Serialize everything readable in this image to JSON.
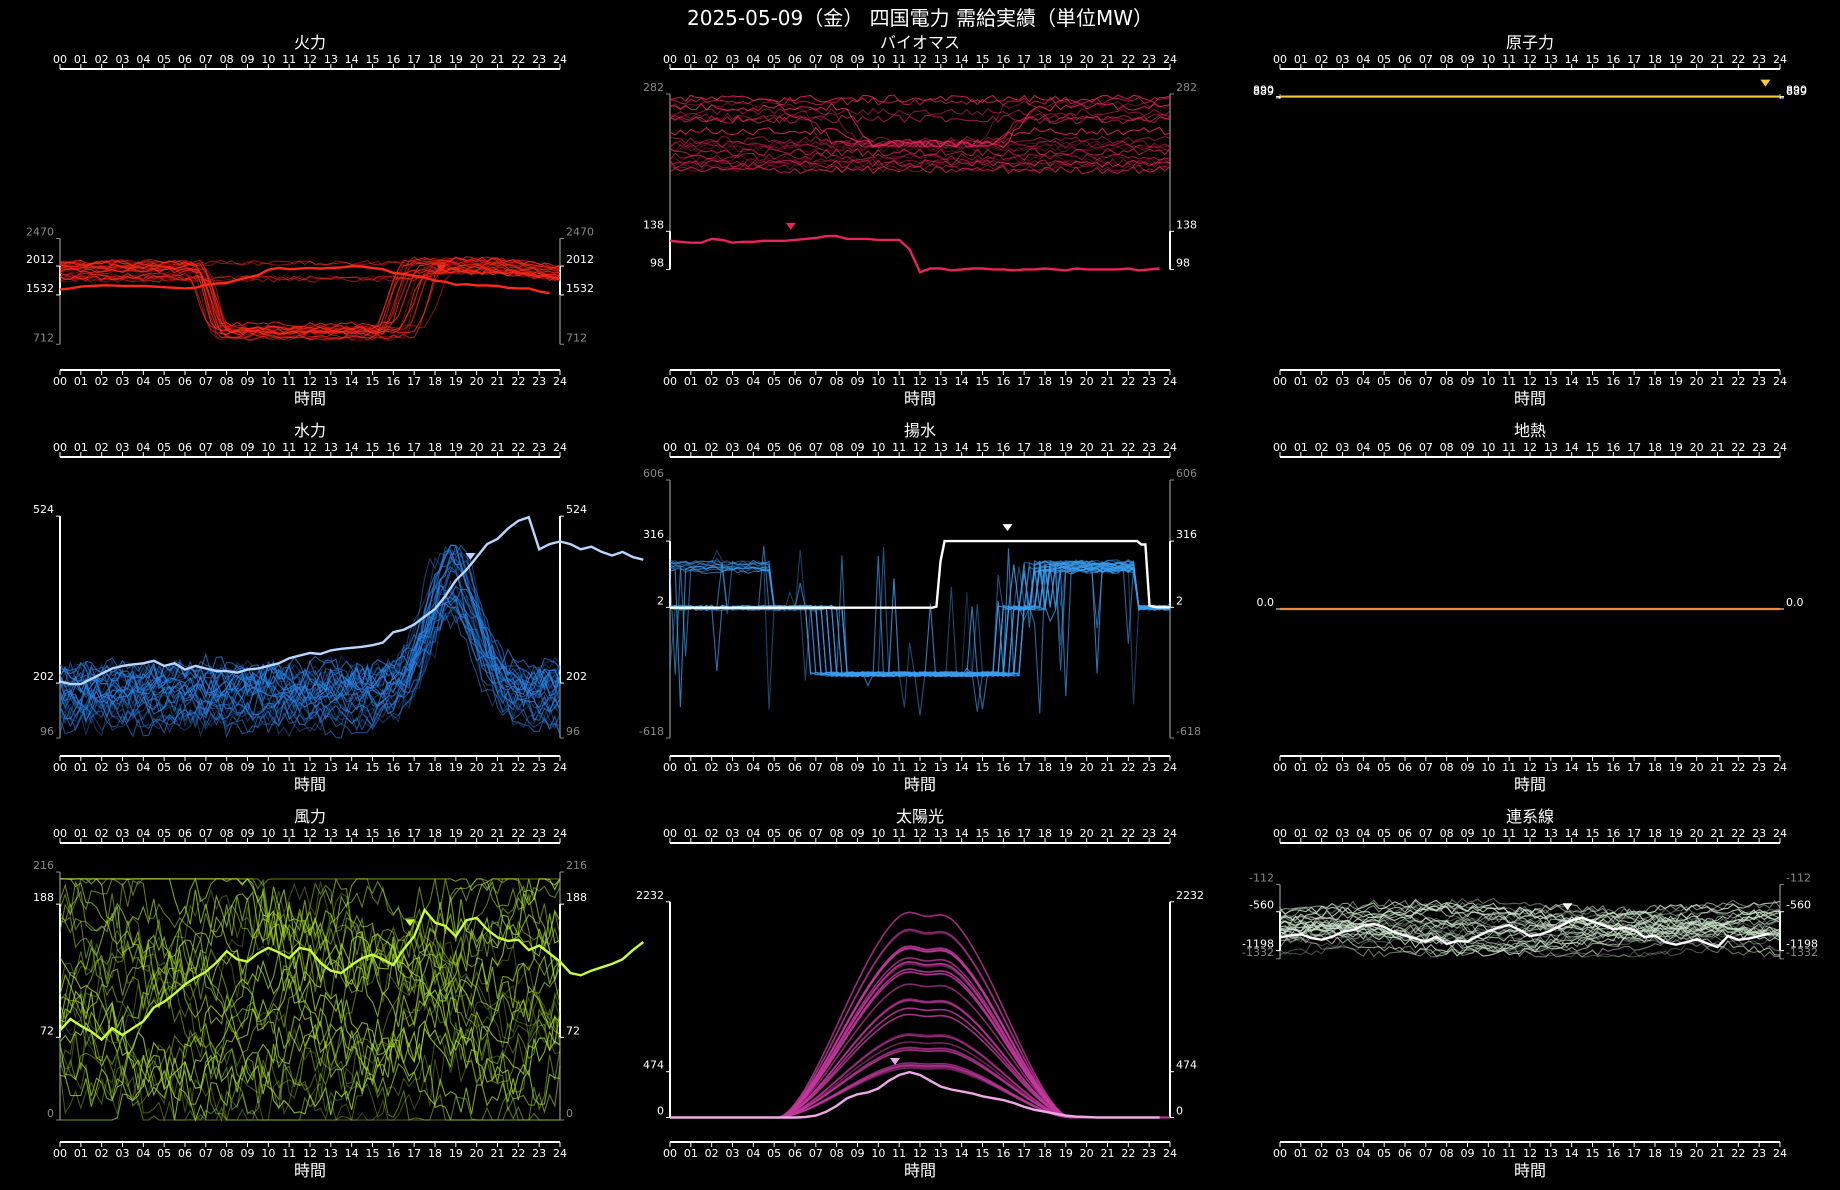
{
  "title": "2025-05-09（金） 四国電力 需給実績（単位MW）",
  "hour_ticks": [
    "00",
    "01",
    "02",
    "03",
    "04",
    "05",
    "06",
    "07",
    "08",
    "09",
    "10",
    "11",
    "12",
    "13",
    "14",
    "15",
    "16",
    "17",
    "18",
    "19",
    "20",
    "21",
    "22",
    "23",
    "24"
  ],
  "chart_data": [
    {
      "type": "line",
      "title": "火力",
      "xlabel": "時間",
      "color": "#ff2a1a",
      "ylim": [
        712,
        2470
      ],
      "yticks": [
        {
          "value": 2470,
          "label": "2470",
          "style": "dim"
        },
        {
          "value": 2012,
          "label": "2012",
          "style": "bright"
        },
        {
          "value": 1532,
          "label": "1532",
          "style": "bright"
        },
        {
          "value": 712,
          "label": "712",
          "style": "dim"
        }
      ],
      "today": [
        1620,
        1640,
        1670,
        1680,
        1690,
        1690,
        1680,
        1680,
        1680,
        1670,
        1660,
        1650,
        1640,
        1650,
        1700,
        1720,
        1730,
        1780,
        1820,
        1860,
        1950,
        1980,
        1960,
        1970,
        1980,
        1970,
        1980,
        1990,
        2010,
        2005,
        1980,
        1960,
        1900,
        1880,
        1850,
        1820,
        1770,
        1750,
        1700,
        1710,
        1690,
        1690,
        1680,
        1650,
        1640,
        1640,
        1590,
        1560
      ],
      "marker_hour": 18.3,
      "history": {
        "count": 24,
        "peak_hi": 2090,
        "peak_lo": 1770,
        "dip_lo": 770,
        "dip_hi": 1050,
        "dip_frac": 0.75,
        "dip_start": [
          6,
          7
        ],
        "dip_end": [
          14.5,
          17.5
        ],
        "noise": 40
      }
    },
    {
      "type": "line",
      "title": "バイオマス",
      "xlabel": "時間",
      "color": "#e8245a",
      "ylim": [
        98,
        282
      ],
      "yticks": [
        {
          "value": 282,
          "label": "282",
          "style": "dim"
        },
        {
          "value": 138,
          "label": "138",
          "style": "bright"
        },
        {
          "value": 98,
          "label": "98",
          "style": "bright"
        }
      ],
      "today": [
        128,
        127,
        126,
        126,
        130,
        129,
        126,
        127,
        127,
        128,
        128,
        128,
        129,
        130,
        131,
        133,
        133,
        130,
        130,
        130,
        129,
        129,
        129,
        119,
        95,
        99,
        99,
        97,
        98,
        99,
        99,
        98,
        98,
        97,
        98,
        98,
        99,
        98,
        97,
        99,
        98,
        98,
        98,
        98,
        99,
        97,
        98,
        99
      ],
      "marker_hour": 5.8,
      "history": {
        "count": 22,
        "hi_lo": 200,
        "hi_hi": 280,
        "dip_level": 230,
        "dip_frac": 0.4,
        "dip_start": [
          6,
          8.5
        ],
        "dip_end": [
          14.5,
          17.5
        ],
        "noise": 4
      }
    },
    {
      "type": "line",
      "title": "原子力",
      "xlabel": "時間",
      "color": "#f2cf3a",
      "ylim": [
        888,
        892
      ],
      "yticks": [
        {
          "value": 890,
          "label": "890",
          "style": "bright"
        },
        {
          "value": 889,
          "label": "889",
          "style": "bright"
        }
      ],
      "flat_value": 890,
      "marker_hour": 23.3
    },
    {
      "type": "line",
      "title": "水力",
      "xlabel": "時間",
      "color": "#2a82e6",
      "today_color": "#b8d6ff",
      "ylim": [
        96,
        524
      ],
      "yticks": [
        {
          "value": 524,
          "label": "524",
          "style": "bright"
        },
        {
          "value": 202,
          "label": "202",
          "style": "bright"
        },
        {
          "value": 96,
          "label": "96",
          "style": "dim"
        }
      ],
      "today": [
        205,
        200,
        200,
        210,
        220,
        230,
        235,
        238,
        240,
        245,
        235,
        240,
        228,
        235,
        230,
        225,
        225,
        222,
        228,
        230,
        235,
        240,
        250,
        255,
        260,
        258,
        265,
        268,
        270,
        272,
        275,
        280,
        300,
        305,
        315,
        330,
        345,
        370,
        400,
        420,
        445,
        470,
        480,
        500,
        515,
        522,
        460,
        470,
        475,
        470,
        460,
        465,
        455,
        448,
        455,
        445,
        440
      ],
      "marker_hour": 19.7,
      "history": {
        "count": 30,
        "base_lo": 120,
        "base_hi": 230,
        "peak_hour": [
          18.3,
          19.2
        ],
        "peak_lo": 340,
        "peak_hi": 470,
        "noise": 22
      }
    },
    {
      "type": "line",
      "title": "揚水",
      "xlabel": "時間",
      "color": "#3a9ef0",
      "today_color": "#ffffff",
      "ylim": [
        -618,
        606
      ],
      "yticks": [
        {
          "value": 606,
          "label": "606",
          "style": "dim"
        },
        {
          "value": 316,
          "label": "316",
          "style": "bright"
        },
        {
          "value": 2,
          "label": "2",
          "style": "bright"
        },
        {
          "value": -618,
          "label": "-618",
          "style": "dim"
        }
      ],
      "today": [
        0,
        0,
        0,
        0,
        0,
        0,
        0,
        0,
        0,
        0,
        0,
        0,
        0,
        0,
        0,
        0,
        0,
        0,
        0,
        0,
        0,
        0,
        0,
        0,
        0,
        0,
        0,
        0,
        0,
        0,
        0,
        0,
        0,
        0,
        0,
        0,
        0,
        0,
        0,
        0,
        0,
        0,
        0,
        0,
        0,
        0,
        0,
        0,
        0,
        0,
        0,
        0,
        0,
        0,
        0,
        0,
        0,
        0,
        0,
        0,
        0,
        0,
        0,
        0,
        0,
        5,
        220,
        316,
        316,
        316,
        316,
        316,
        316,
        316,
        316,
        316,
        316,
        316,
        316,
        316,
        316,
        316,
        316,
        316,
        316,
        316,
        316,
        316,
        316,
        316,
        316,
        316,
        316,
        316,
        316,
        316,
        316,
        316,
        316,
        316,
        316,
        316,
        316,
        316,
        316,
        316,
        316,
        316,
        316,
        316,
        316,
        316,
        316,
        316,
        316,
        300,
        300,
        10,
        5,
        2,
        2,
        2,
        2
      ],
      "marker_hour": 16.2,
      "history": {
        "count": 26,
        "gen_level": 200,
        "pump_level": -315,
        "pump_start": [
          6.5,
          8.5
        ],
        "pump_end": [
          15.5,
          17
        ],
        "noise": 12
      }
    },
    {
      "type": "line",
      "title": "地熱",
      "xlabel": "時間",
      "color": "#f08a3a",
      "ylim": [
        -1,
        1
      ],
      "yticks": [
        {
          "value": 0,
          "label": "0.0",
          "style": "bright"
        }
      ],
      "flat_value": 0
    },
    {
      "type": "line",
      "title": "風力",
      "xlabel": "時間",
      "color": "#a6d82a",
      "today_color": "#c8ff3a",
      "ylim": [
        0,
        216
      ],
      "yticks": [
        {
          "value": 216,
          "label": "216",
          "style": "dim"
        },
        {
          "value": 188,
          "label": "188",
          "style": "bright"
        },
        {
          "value": 72,
          "label": "72",
          "style": "bright"
        },
        {
          "value": 0,
          "label": "0",
          "style": "dim"
        }
      ],
      "today": [
        78,
        88,
        82,
        77,
        70,
        80,
        74,
        80,
        86,
        98,
        103,
        110,
        118,
        124,
        129,
        137,
        147,
        140,
        138,
        145,
        150,
        146,
        141,
        150,
        148,
        137,
        130,
        128,
        135,
        141,
        144,
        140,
        135,
        149,
        160,
        183,
        172,
        169,
        160,
        174,
        176,
        166,
        159,
        156,
        157,
        148,
        152,
        145,
        138,
        128,
        126,
        130,
        133,
        136,
        140,
        148,
        155
      ],
      "marker_hour": 16.8,
      "history": {
        "count": 30,
        "lo": 5,
        "hi": 200,
        "noise": 18
      }
    },
    {
      "type": "area",
      "title": "太陽光",
      "xlabel": "時間",
      "color": "#c3399e",
      "today_color": "#f0a8e6",
      "ylim": [
        0,
        2232
      ],
      "yticks": [
        {
          "value": 2232,
          "label": "2232",
          "style": "bright"
        },
        {
          "value": 474,
          "label": "474",
          "style": "bright"
        },
        {
          "value": 0,
          "label": "0",
          "style": "bright"
        }
      ],
      "today": [
        0,
        0,
        0,
        0,
        0,
        0,
        0,
        0,
        0,
        0,
        0,
        0,
        0,
        5,
        20,
        60,
        120,
        200,
        240,
        260,
        300,
        380,
        440,
        470,
        440,
        380,
        320,
        290,
        270,
        250,
        220,
        200,
        180,
        150,
        110,
        80,
        60,
        40,
        20,
        10,
        5,
        0,
        0,
        0,
        0,
        0,
        0,
        0
      ],
      "marker_hour": 10.8,
      "history": {
        "count": 28,
        "amp_lo": 500,
        "amp_hi": 2232,
        "start_hour": 5.2,
        "end_hour": 19.2
      }
    },
    {
      "type": "line",
      "title": "連系線",
      "xlabel": "時間",
      "color": "#cfe8cf",
      "today_color": "#ffffff",
      "ylim": [
        -1332,
        -112
      ],
      "yticks": [
        {
          "value": -112,
          "label": "-112",
          "style": "dim"
        },
        {
          "value": -560,
          "label": "-560",
          "style": "bright"
        },
        {
          "value": -1198,
          "label": "-1198",
          "style": "bright"
        },
        {
          "value": -1332,
          "label": "-1332",
          "style": "dim"
        }
      ],
      "today": [
        -980,
        -950,
        -930,
        -990,
        -1020,
        -970,
        -890,
        -860,
        -790,
        -760,
        -810,
        -900,
        -950,
        -1000,
        -1050,
        -970,
        -1090,
        -1040,
        -1050,
        -960,
        -880,
        -820,
        -780,
        -860,
        -960,
        -930,
        -870,
        -790,
        -700,
        -660,
        -720,
        -780,
        -850,
        -820,
        -860,
        -980,
        -950,
        -1060,
        -1100,
        -1060,
        -1010,
        -1080,
        -1140,
        -960,
        -1020,
        -1000,
        -960,
        -920
      ],
      "marker_hour": 13.8,
      "history": {
        "count": 30,
        "hi": -450,
        "lo": -1300,
        "noise": 70
      }
    }
  ]
}
